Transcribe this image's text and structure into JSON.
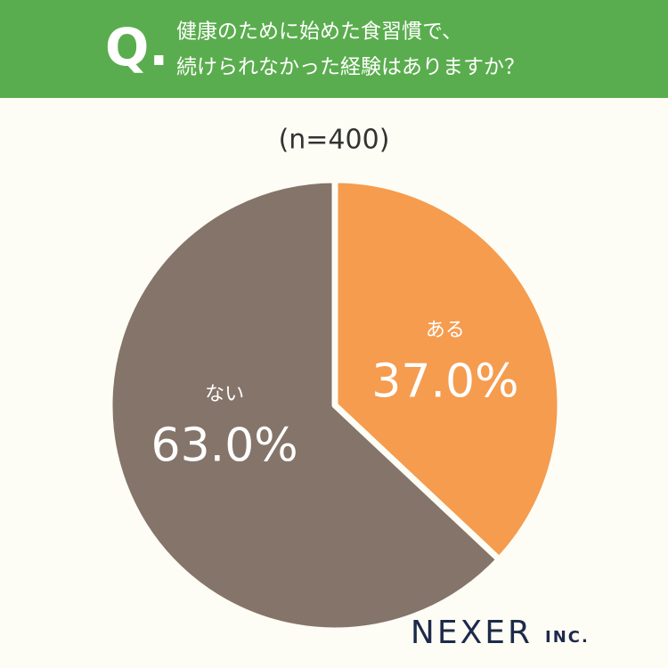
{
  "question": {
    "mark": "Q.",
    "lines": [
      "健康のために始めた食習慣で、",
      "続けられなかった経験はありますか？"
    ]
  },
  "brand": {
    "name": "NEXER",
    "suffix": "INC."
  },
  "chart_data": {
    "type": "pie",
    "subtitle": "(n=400)",
    "categories": [
      "ある",
      "ない"
    ],
    "values": [
      37.0,
      63.0
    ],
    "value_labels": [
      "37.0%",
      "63.0%"
    ],
    "colors": [
      "#f59c4f",
      "#857469"
    ]
  }
}
